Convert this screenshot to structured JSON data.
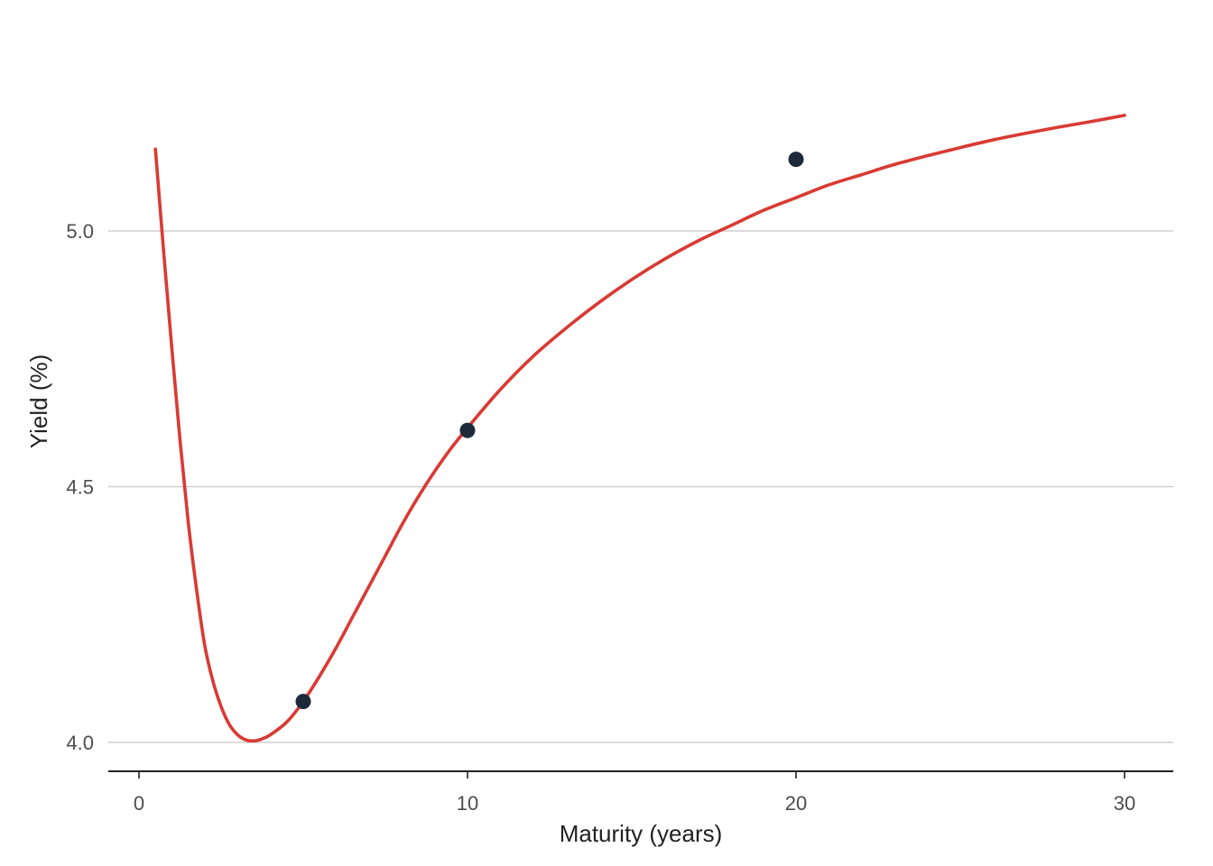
{
  "chart_data": {
    "type": "line",
    "title": "",
    "xlabel": "Maturity (years)",
    "ylabel": "Yield (%)",
    "xlim": [
      -1,
      31.5
    ],
    "ylim": [
      3.94,
      5.26
    ],
    "x_ticks": [
      0,
      10,
      20,
      30
    ],
    "x_tick_labels": [
      "0",
      "10",
      "20",
      "30"
    ],
    "y_ticks": [
      4.0,
      4.5,
      5.0
    ],
    "y_tick_labels": [
      "4.0",
      "4.5",
      "5.0"
    ],
    "grid": "horizontal",
    "legend": "none",
    "colors": {
      "curve": "#d93a33",
      "points": "#1e2a3a",
      "grid": "#cfcfcf",
      "axis": "#222222"
    },
    "series": [
      {
        "kind": "fitted-curve",
        "x": [
          0.5,
          0.75,
          1,
          1.25,
          1.5,
          1.75,
          2,
          2.25,
          2.5,
          2.75,
          3,
          3.25,
          3.5,
          3.75,
          4,
          4.5,
          5,
          5.5,
          6,
          6.5,
          7,
          7.5,
          8,
          8.5,
          9,
          9.5,
          10,
          11,
          12,
          13,
          14,
          15,
          16,
          17,
          18,
          19,
          20,
          21,
          22,
          23,
          24,
          25,
          26,
          27,
          28,
          29,
          30
        ],
        "y": [
          5.16,
          4.96,
          4.77,
          4.59,
          4.43,
          4.3,
          4.19,
          4.12,
          4.07,
          4.035,
          4.015,
          4.005,
          4.003,
          4.007,
          4.015,
          4.04,
          4.08,
          4.13,
          4.185,
          4.245,
          4.305,
          4.365,
          4.425,
          4.48,
          4.53,
          4.575,
          4.615,
          4.69,
          4.755,
          4.81,
          4.86,
          4.905,
          4.945,
          4.98,
          5.01,
          5.04,
          5.065,
          5.09,
          5.11,
          5.13,
          5.147,
          5.163,
          5.178,
          5.191,
          5.203,
          5.214,
          5.226
        ]
      },
      {
        "kind": "observed",
        "x": [
          5,
          10,
          20
        ],
        "y": [
          4.08,
          4.61,
          5.14
        ]
      }
    ]
  }
}
